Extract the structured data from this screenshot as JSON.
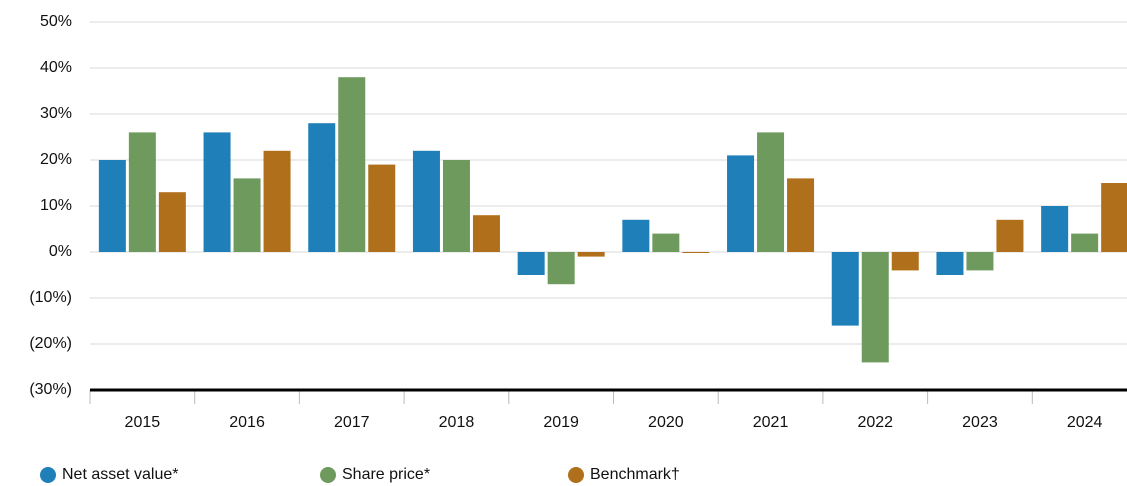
{
  "chart_data": {
    "type": "bar",
    "categories": [
      "2015",
      "2016",
      "2017",
      "2018",
      "2019",
      "2020",
      "2021",
      "2022",
      "2023",
      "2024"
    ],
    "series": [
      {
        "name": "Net asset value*",
        "color": "#1f7fb8",
        "values": [
          20,
          26,
          28,
          22,
          -5,
          7,
          21,
          -16,
          -5,
          10
        ]
      },
      {
        "name": "Share price*",
        "color": "#6e9a5e",
        "values": [
          26,
          16,
          38,
          20,
          -7,
          4,
          26,
          -24,
          -4,
          4
        ]
      },
      {
        "name": "Benchmark†",
        "color": "#b06f1a",
        "values": [
          13,
          22,
          19,
          8,
          -1,
          0,
          16,
          -4,
          7,
          15
        ]
      }
    ],
    "ylim": [
      -30,
      50
    ],
    "yticks": [
      {
        "value": -30,
        "label": "(30%)"
      },
      {
        "value": -20,
        "label": "(20%)"
      },
      {
        "value": -10,
        "label": "(10%)"
      },
      {
        "value": 0,
        "label": "0%"
      },
      {
        "value": 10,
        "label": "10%"
      },
      {
        "value": 20,
        "label": "20%"
      },
      {
        "value": 30,
        "label": "30%"
      },
      {
        "value": 40,
        "label": "40%"
      },
      {
        "value": 50,
        "label": "50%"
      }
    ],
    "grid": true,
    "legend": "bottom"
  }
}
